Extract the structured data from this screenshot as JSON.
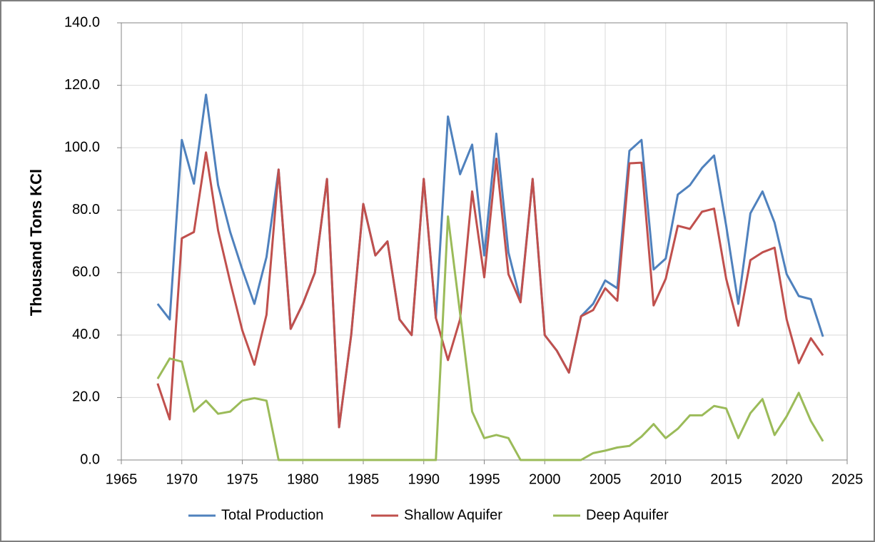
{
  "chart_data": {
    "type": "line",
    "y_label": "Thousand Tons KCl",
    "x": [
      1968,
      1969,
      1970,
      1971,
      1972,
      1973,
      1974,
      1975,
      1976,
      1977,
      1978,
      1979,
      1980,
      1981,
      1982,
      1983,
      1984,
      1985,
      1986,
      1987,
      1988,
      1989,
      1990,
      1991,
      1992,
      1993,
      1994,
      1995,
      1996,
      1997,
      1998,
      1999,
      2000,
      2001,
      2002,
      2003,
      2004,
      2005,
      2006,
      2007,
      2008,
      2009,
      2010,
      2011,
      2012,
      2013,
      2014,
      2015,
      2016,
      2017,
      2018,
      2019,
      2020,
      2021,
      2022,
      2023
    ],
    "series": [
      {
        "name": "Total Production",
        "color": "#4f81bd",
        "values": [
          50,
          45,
          102.5,
          88.5,
          117,
          88,
          73,
          61,
          50,
          65,
          93,
          42,
          50,
          60,
          90,
          10.5,
          40,
          82,
          65.5,
          70,
          45,
          40,
          90,
          45.5,
          110,
          91.5,
          101,
          65.5,
          104.5,
          66.5,
          51,
          90,
          40,
          35,
          28,
          46,
          50,
          57.5,
          55,
          99,
          102.5,
          61,
          64.5,
          85,
          88,
          93.5,
          97.5,
          75,
          50,
          79,
          86,
          76,
          59.5,
          52.5,
          51.5,
          39.5
        ]
      },
      {
        "name": "Shallow Aquifer",
        "color": "#c0504d",
        "values": [
          24.5,
          13,
          71,
          73,
          98.5,
          73.5,
          57,
          41.5,
          30.5,
          46.5,
          93,
          42,
          50,
          60,
          90,
          10.5,
          40,
          82,
          65.5,
          70,
          45,
          40,
          90,
          45.5,
          32,
          45,
          86,
          58.5,
          96.5,
          59.5,
          50.5,
          90,
          40,
          35,
          28,
          46,
          48,
          55,
          51,
          95,
          95.2,
          49.5,
          58,
          75,
          74,
          79.5,
          80.5,
          58,
          43,
          64,
          66.5,
          68,
          45,
          31,
          39,
          33.5
        ]
      },
      {
        "name": "Deep Aquifer",
        "color": "#9bbb59",
        "values": [
          26,
          32.5,
          31.5,
          15.5,
          19,
          14.8,
          15.5,
          19,
          19.8,
          19,
          0,
          0,
          0,
          0,
          0,
          0,
          0,
          0,
          0,
          0,
          0,
          0,
          0,
          0,
          78,
          47,
          15.5,
          7,
          8,
          7,
          0,
          0,
          0,
          0,
          0,
          0,
          2.2,
          3,
          4,
          4.5,
          7.5,
          11.5,
          7,
          10,
          14.3,
          14.3,
          17.3,
          16.5,
          7,
          15,
          19.5,
          8,
          14,
          21.5,
          12.5,
          6
        ]
      }
    ],
    "xlim": [
      1965,
      2025
    ],
    "xticks": [
      1965,
      1970,
      1975,
      1980,
      1985,
      1990,
      1995,
      2000,
      2005,
      2010,
      2015,
      2020,
      2025
    ],
    "ylim": [
      0,
      140
    ],
    "yticks": [
      {
        "value": 0,
        "label": "0.0"
      },
      {
        "value": 20,
        "label": "20.0"
      },
      {
        "value": 40,
        "label": "40.0"
      },
      {
        "value": 60,
        "label": "60.0"
      },
      {
        "value": 80,
        "label": "80.0"
      },
      {
        "value": 100,
        "label": "100.0"
      },
      {
        "value": 120,
        "label": "120.0"
      },
      {
        "value": 140,
        "label": "140.0"
      }
    ],
    "grid": true,
    "legend": "bottom"
  }
}
